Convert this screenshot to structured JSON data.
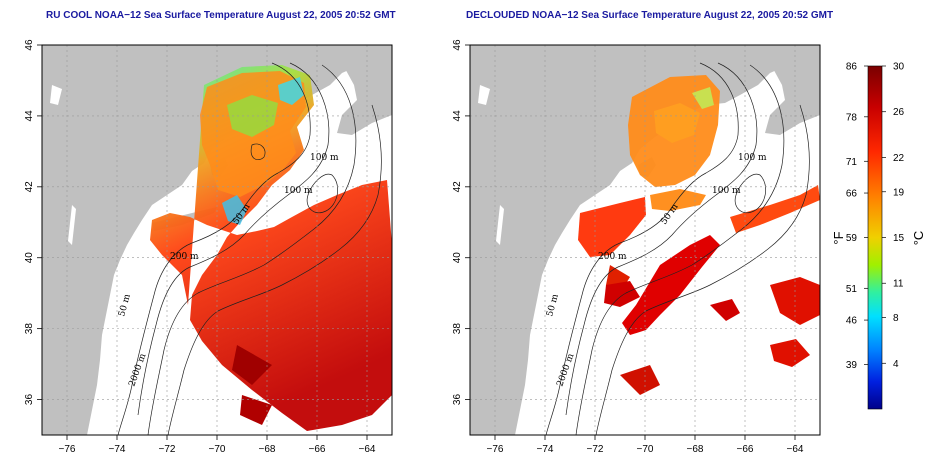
{
  "panels": [
    {
      "id": "left",
      "title": "RU COOL NOAA−12 Sea Surface Temperature August 22, 2005 20:52 GMT",
      "contour_labels": [
        "100 m",
        "100 m",
        "50 m",
        "200 m",
        "50 m",
        "2000 m"
      ]
    },
    {
      "id": "right",
      "title": "DECLOUDED NOAA−12 Sea Surface Temperature August 22, 2005 20:52 GMT",
      "contour_labels": [
        "100 m",
        "100 m",
        "50 m",
        "200 m",
        "50 m",
        "2000 m"
      ]
    }
  ],
  "map_extent": {
    "lon": [
      -77,
      -63
    ],
    "lat": [
      35,
      46
    ]
  },
  "x_ticks": [
    "−76",
    "−74",
    "−72",
    "−70",
    "−68",
    "−66",
    "−64"
  ],
  "y_ticks": [
    "36",
    "38",
    "40",
    "42",
    "44",
    "46"
  ],
  "colorbar": {
    "fahrenheit_labels": [
      "86",
      "78",
      "71",
      "66",
      "59",
      "51",
      "46",
      "39"
    ],
    "celsius_labels": [
      "30",
      "26",
      "22",
      "19",
      "15",
      "11",
      "8",
      "4"
    ],
    "fahrenheit_unit": "°F",
    "celsius_unit": "°C",
    "range_c": [
      0,
      30
    ]
  },
  "colors": {
    "land": "#c0c0c0",
    "ocean": "#ffffff",
    "title": "#1a1aa0"
  }
}
